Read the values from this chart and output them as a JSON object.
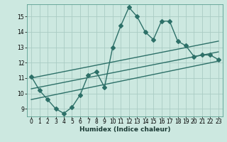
{
  "xlabel": "Humidex (Indice chaleur)",
  "ylabel": "",
  "background_color": "#cce8e0",
  "grid_color": "#aaccc4",
  "line_color": "#2d7068",
  "xlim": [
    -0.5,
    23.5
  ],
  "ylim": [
    8.5,
    15.8
  ],
  "yticks": [
    9,
    10,
    11,
    12,
    13,
    14,
    15
  ],
  "xticks": [
    0,
    1,
    2,
    3,
    4,
    5,
    6,
    7,
    8,
    9,
    10,
    11,
    12,
    13,
    14,
    15,
    16,
    17,
    18,
    19,
    20,
    21,
    22,
    23
  ],
  "data_x": [
    0,
    1,
    2,
    3,
    4,
    5,
    6,
    7,
    8,
    9,
    10,
    11,
    12,
    13,
    14,
    15,
    16,
    17,
    18,
    19,
    20,
    21,
    22,
    23
  ],
  "data_y": [
    11.1,
    10.2,
    9.6,
    9.0,
    8.7,
    9.1,
    9.9,
    11.2,
    11.4,
    10.4,
    13.0,
    14.4,
    15.6,
    15.0,
    14.0,
    13.5,
    14.7,
    14.7,
    13.4,
    13.1,
    12.4,
    12.5,
    12.5,
    12.2
  ],
  "reg_line1_x": [
    0,
    23
  ],
  "reg_line1_y": [
    11.0,
    13.4
  ],
  "reg_line2_x": [
    0,
    23
  ],
  "reg_line2_y": [
    10.3,
    12.7
  ],
  "reg_line3_x": [
    0,
    23
  ],
  "reg_line3_y": [
    9.6,
    12.1
  ],
  "marker_size": 3,
  "linewidth": 1.0
}
